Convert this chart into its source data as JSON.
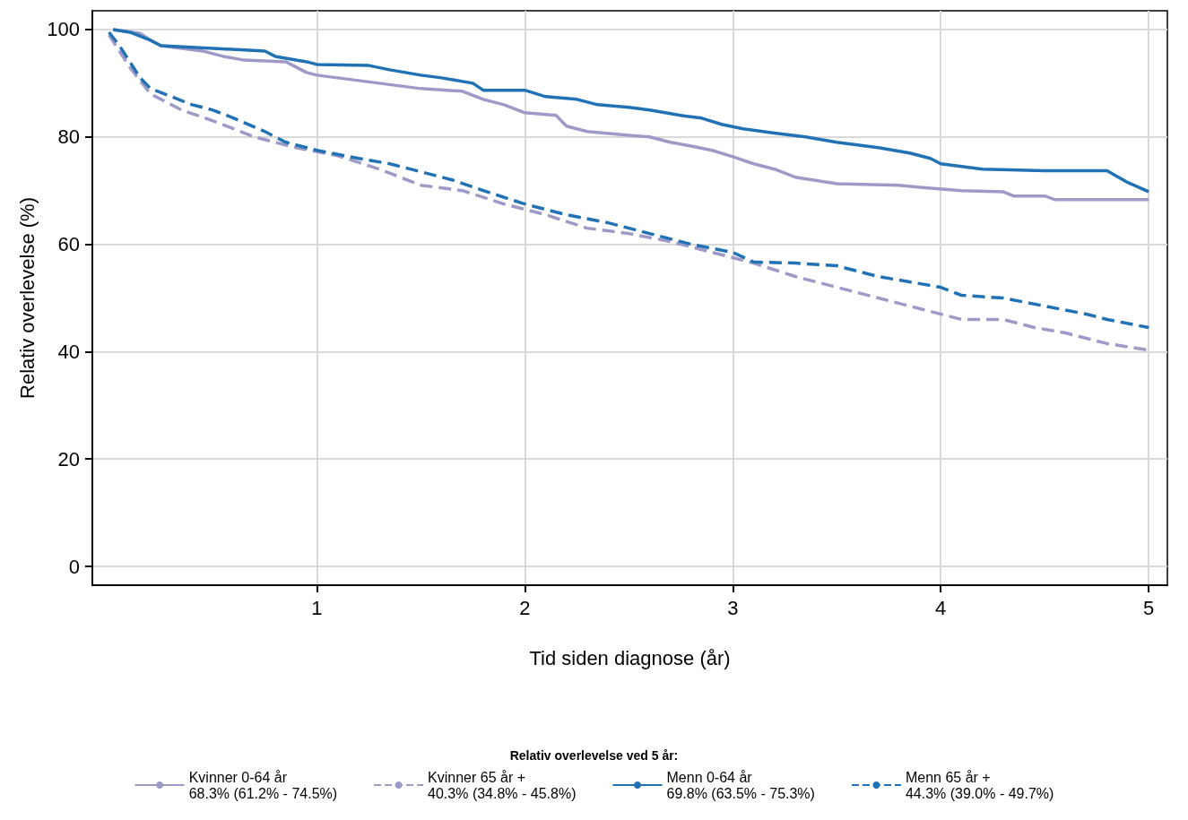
{
  "chart_data": {
    "type": "line",
    "xlabel": "Tid siden diagnose (år)",
    "ylabel": "Relativ overlevelse (%)",
    "legend_title": "Relativ overlevelse ved 5 år:",
    "legend": "bottom",
    "grid": true,
    "marker": "none",
    "xlim": [
      -0.08,
      5.09
    ],
    "xticks": [
      1,
      2,
      3,
      4,
      5
    ],
    "ylim": [
      -3.5,
      103.5
    ],
    "yticks": [
      0,
      20,
      40,
      60,
      80,
      100
    ],
    "series": [
      {
        "name": "Kvinner 0-64 år\n68.3% (61.2% - 74.5%)",
        "color": "#9e9ac8",
        "line_style": "solid",
        "x": [
          0.02,
          0.15,
          0.2,
          0.25,
          0.45,
          0.55,
          0.65,
          0.85,
          0.95,
          1.0,
          1.2,
          1.3,
          1.5,
          1.7,
          1.8,
          1.9,
          2.0,
          2.15,
          2.2,
          2.3,
          2.5,
          2.6,
          2.7,
          2.8,
          2.9,
          3.0,
          3.1,
          3.2,
          3.3,
          3.5,
          3.8,
          3.9,
          4.1,
          4.3,
          4.35,
          4.5,
          4.55,
          5.0
        ],
        "values": [
          100,
          99.3,
          98,
          97,
          96,
          95,
          94.3,
          94,
          92,
          91.5,
          90.5,
          90,
          89,
          88.5,
          87,
          86,
          84.5,
          84,
          82,
          81,
          80.3,
          80,
          79,
          78.3,
          77.5,
          76.3,
          75,
          74,
          72.5,
          71.3,
          71,
          70.6,
          70,
          69.8,
          69,
          69,
          68.3,
          68.3
        ]
      },
      {
        "name": "Kvinner 65 år +\n40.3% (34.8% - 45.8%)",
        "color": "#9e9ac8",
        "line_style": "dashed",
        "x": [
          0.0,
          0.1,
          0.2,
          0.35,
          0.5,
          0.7,
          0.9,
          1.1,
          1.3,
          1.5,
          1.7,
          1.9,
          2.1,
          2.3,
          2.5,
          2.7,
          2.9,
          3.1,
          3.3,
          3.5,
          3.7,
          3.9,
          4.1,
          4.3,
          4.45,
          4.6,
          4.8,
          5.0
        ],
        "values": [
          99,
          93,
          88,
          85,
          83,
          80,
          78,
          76.5,
          74,
          71,
          70,
          67.5,
          65.5,
          63,
          62,
          60.5,
          58.5,
          56.5,
          54,
          52,
          50,
          48,
          46,
          46,
          44.5,
          43.5,
          41.5,
          40.3
        ]
      },
      {
        "name": "Menn 0-64 år\n69.8% (63.5% - 75.3%)",
        "color": "#2171b5",
        "line_style": "solid",
        "x": [
          0.02,
          0.1,
          0.2,
          0.25,
          0.5,
          0.75,
          0.8,
          0.95,
          1.0,
          1.25,
          1.35,
          1.5,
          1.6,
          1.75,
          1.8,
          2.0,
          2.1,
          2.25,
          2.35,
          2.5,
          2.6,
          2.75,
          2.85,
          2.95,
          3.05,
          3.2,
          3.35,
          3.5,
          3.7,
          3.85,
          3.95,
          4.0,
          4.2,
          4.5,
          4.8,
          4.9,
          5.0
        ],
        "values": [
          100,
          99.5,
          98,
          97,
          96.5,
          96,
          95,
          94,
          93.5,
          93.3,
          92.5,
          91.5,
          91,
          90,
          88.7,
          88.7,
          87.5,
          87,
          86,
          85.5,
          85,
          84,
          83.5,
          82.3,
          81.5,
          80.7,
          80,
          79,
          78,
          77,
          76,
          75,
          74,
          73.7,
          73.7,
          71.5,
          69.8
        ]
      },
      {
        "name": "Menn 65 år +\n44.3% (39.0% - 49.7%)",
        "color": "#2171b5",
        "line_style": "dashed",
        "x": [
          0.0,
          0.05,
          0.1,
          0.15,
          0.2,
          0.3,
          0.4,
          0.5,
          0.6,
          0.75,
          0.85,
          1.0,
          1.2,
          1.35,
          1.5,
          1.65,
          1.8,
          2.0,
          2.2,
          2.4,
          2.6,
          2.8,
          3.0,
          3.1,
          3.3,
          3.5,
          3.7,
          3.85,
          4.0,
          4.1,
          4.3,
          4.5,
          4.7,
          4.8,
          5.0
        ],
        "values": [
          99.5,
          97,
          94,
          91,
          89,
          87.5,
          86,
          85,
          83.5,
          81,
          79,
          77.5,
          76,
          75,
          73.5,
          72,
          70,
          67.5,
          65.5,
          64,
          62,
          60,
          58.5,
          56.7,
          56.5,
          56,
          54,
          53,
          52,
          50.5,
          50,
          48.5,
          47,
          46,
          44.5
        ]
      }
    ]
  }
}
